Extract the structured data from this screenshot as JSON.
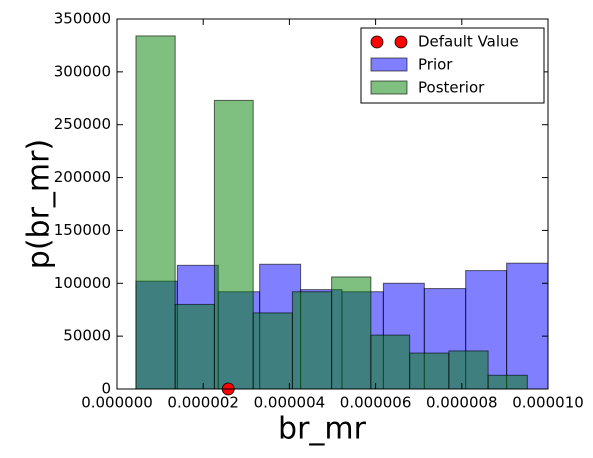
{
  "chart_data": {
    "type": "histogram",
    "xlabel": "br_mr",
    "ylabel": "p(br_mr)",
    "xlim": [
      0,
      1e-05
    ],
    "ylim": [
      0,
      350000
    ],
    "xticks": [
      {
        "value": 0,
        "label": "0.000000"
      },
      {
        "value": 2e-06,
        "label": "0.000002"
      },
      {
        "value": 4e-06,
        "label": "0.000004"
      },
      {
        "value": 6e-06,
        "label": "0.000006"
      },
      {
        "value": 8e-06,
        "label": "0.000008"
      },
      {
        "value": 1e-05,
        "label": "0.000010"
      }
    ],
    "yticks": [
      0,
      50000,
      100000,
      150000,
      200000,
      250000,
      300000,
      350000
    ],
    "legend": "upper right",
    "series": [
      {
        "name": "Default Value",
        "type": "scatter",
        "color": "#ff0000",
        "x": [
          2.58e-06
        ],
        "values": [
          0
        ]
      },
      {
        "name": "Prior",
        "type": "histogram",
        "color": "#0000ff",
        "bins": [
          4.4e-07,
          1.4e-06,
          2.35e-06,
          3.31e-06,
          4.26e-06,
          5.22e-06,
          6.18e-06,
          7.13e-06,
          8.09e-06,
          9.04e-06,
          1e-05
        ],
        "values": [
          102000,
          117000,
          92000,
          118000,
          94000,
          92000,
          100000,
          95000,
          112000,
          119000
        ]
      },
      {
        "name": "Posterior",
        "type": "histogram",
        "color": "#008000",
        "bins": [
          4.4e-07,
          1.35e-06,
          2.26e-06,
          3.16e-06,
          4.07e-06,
          4.98e-06,
          5.89e-06,
          6.79e-06,
          7.7e-06,
          8.61e-06,
          9.52e-06
        ],
        "values": [
          334000,
          80000,
          273000,
          72000,
          92000,
          106000,
          51000,
          34000,
          36000,
          13000
        ]
      }
    ]
  }
}
